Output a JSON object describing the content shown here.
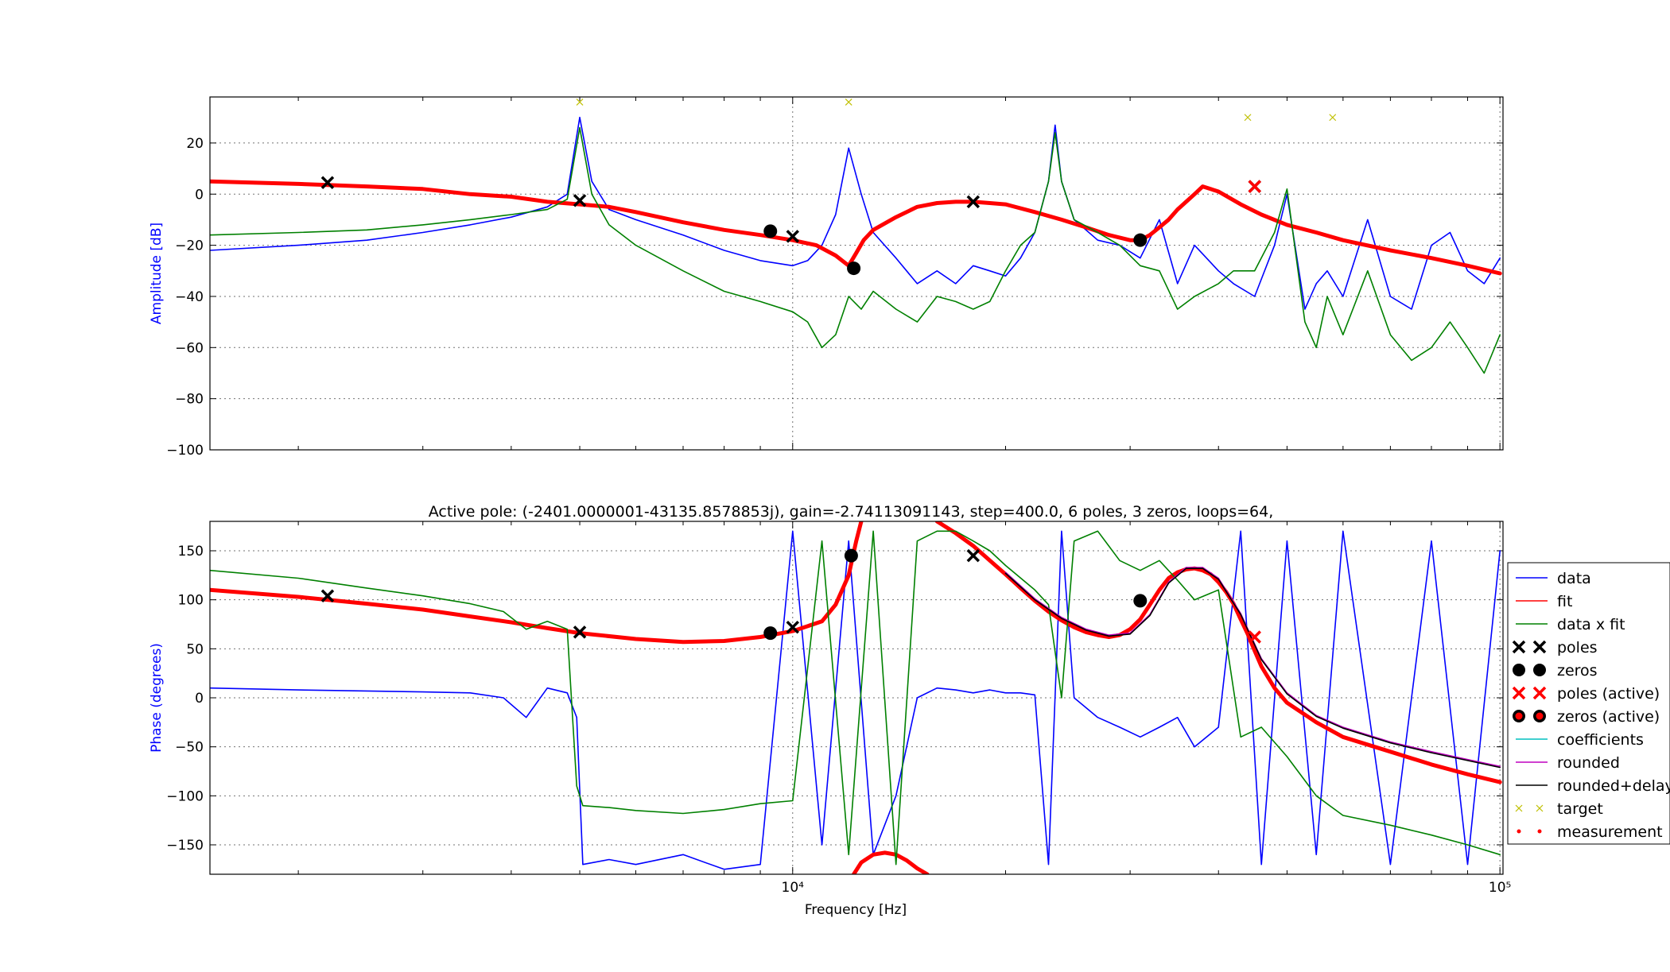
{
  "chart_data": [
    {
      "type": "line",
      "panel": "amplitude",
      "xscale": "log",
      "xlim": [
        1500,
        101000
      ],
      "ylim": [
        -100,
        38
      ],
      "ylabel": "Amplitude [dB]",
      "yticks": [
        20,
        0,
        -20,
        -40,
        -60,
        -80,
        -100
      ],
      "grid": true,
      "series": [
        {
          "name": "data",
          "color": "#0000ff",
          "x": [
            1500,
            2000,
            2500,
            3000,
            3500,
            4000,
            4500,
            4800,
            5000,
            5200,
            5500,
            6000,
            7000,
            8000,
            9000,
            10000,
            10500,
            11000,
            11500,
            12000,
            12500,
            13000,
            14000,
            15000,
            16000,
            17000,
            18000,
            19000,
            20000,
            21000,
            22000,
            23000,
            23500,
            24000,
            25000,
            27000,
            29000,
            31000,
            33000,
            35000,
            37000,
            40000,
            42000,
            45000,
            48000,
            50000,
            53000,
            55000,
            57000,
            60000,
            65000,
            70000,
            75000,
            80000,
            85000,
            90000,
            95000,
            100000
          ],
          "y": [
            -22,
            -20,
            -18,
            -15,
            -12,
            -9,
            -5,
            0,
            30,
            5,
            -6,
            -10,
            -16,
            -22,
            -26,
            -28,
            -26,
            -20,
            -8,
            18,
            0,
            -15,
            -25,
            -35,
            -30,
            -35,
            -28,
            -30,
            -32,
            -25,
            -15,
            5,
            27,
            5,
            -10,
            -18,
            -20,
            -25,
            -10,
            -35,
            -20,
            -30,
            -35,
            -40,
            -20,
            0,
            -45,
            -35,
            -30,
            -40,
            -10,
            -40,
            -45,
            -20,
            -15,
            -30,
            -35,
            -25
          ]
        },
        {
          "name": "fit",
          "color": "#ff0000",
          "x": [
            1500,
            2000,
            2500,
            3000,
            3500,
            4000,
            4500,
            5000,
            5500,
            6000,
            7000,
            8000,
            9000,
            10000,
            10800,
            11500,
            12000,
            12300,
            12600,
            13000,
            14000,
            15000,
            16000,
            17000,
            18000,
            19000,
            20000,
            22000,
            24000,
            26000,
            28000,
            30000,
            31000,
            32000,
            33000,
            34000,
            35000,
            36000,
            37000,
            38000,
            40000,
            43000,
            46000,
            50000,
            55000,
            60000,
            70000,
            80000,
            90000,
            100000
          ],
          "y": [
            5,
            4,
            3,
            2,
            0,
            -1,
            -3,
            -4,
            -5,
            -7,
            -11,
            -14,
            -16,
            -18,
            -20,
            -24,
            -28,
            -23,
            -18,
            -14,
            -9,
            -5,
            -3.5,
            -3,
            -3,
            -3.5,
            -4,
            -7,
            -10,
            -13,
            -16,
            -18,
            -18,
            -16,
            -13,
            -10,
            -6,
            -3,
            0,
            3,
            1,
            -4,
            -8,
            -12,
            -15,
            -18,
            -22,
            -25,
            -28,
            -31
          ]
        },
        {
          "name": "data x fit",
          "color": "#008000",
          "x": [
            1500,
            2000,
            2500,
            3000,
            3500,
            4000,
            4500,
            4800,
            5000,
            5200,
            5500,
            6000,
            7000,
            8000,
            9000,
            10000,
            10500,
            11000,
            11500,
            12000,
            12500,
            13000,
            14000,
            15000,
            16000,
            17000,
            18000,
            19000,
            20000,
            21000,
            22000,
            23000,
            23500,
            24000,
            25000,
            27000,
            29000,
            31000,
            33000,
            35000,
            37000,
            40000,
            42000,
            45000,
            48000,
            50000,
            53000,
            55000,
            57000,
            60000,
            65000,
            70000,
            75000,
            80000,
            85000,
            90000,
            95000,
            100000
          ],
          "y": [
            -16,
            -15,
            -14,
            -12,
            -10,
            -8,
            -6,
            -2,
            26,
            0,
            -12,
            -20,
            -30,
            -38,
            -42,
            -46,
            -50,
            -60,
            -55,
            -40,
            -45,
            -38,
            -45,
            -50,
            -40,
            -42,
            -45,
            -42,
            -30,
            -20,
            -15,
            5,
            24,
            5,
            -10,
            -15,
            -20,
            -28,
            -30,
            -45,
            -40,
            -35,
            -30,
            -30,
            -15,
            2,
            -50,
            -60,
            -40,
            -55,
            -30,
            -55,
            -65,
            -60,
            -50,
            -60,
            -70,
            -55
          ]
        }
      ],
      "markers": {
        "poles": [
          [
            2200,
            4.5
          ],
          [
            5000,
            -2.5
          ],
          [
            10000,
            -16.5
          ],
          [
            18000,
            -3
          ],
          [
            45000,
            3
          ]
        ],
        "zeros": [
          [
            9300,
            -14.5
          ],
          [
            12200,
            -29
          ],
          [
            31000,
            -18
          ]
        ],
        "poles_active": [
          [
            45000,
            3
          ]
        ],
        "target": [
          [
            5000,
            36
          ],
          [
            12000,
            36
          ],
          [
            44000,
            30
          ],
          [
            58000,
            30
          ]
        ]
      }
    },
    {
      "type": "line",
      "panel": "phase",
      "title": "Active pole: (-2401.0000001-43135.8578853j), gain=-2.74113091143, step=400.0, 6 poles, 3 zeros, loops=64,",
      "xscale": "log",
      "xlim": [
        1500,
        101000
      ],
      "ylim": [
        -180,
        180
      ],
      "ylabel": "Phase (degrees)",
      "xlabel": "Frequency [Hz]",
      "yticks": [
        150,
        100,
        50,
        0,
        -50,
        -100,
        -150
      ],
      "xticks": [
        {
          "value": 10000,
          "label": "10⁴"
        },
        {
          "value": 100000,
          "label": "10⁵"
        }
      ],
      "grid": true,
      "series": [
        {
          "name": "data",
          "color": "#0000ff",
          "x": [
            1500,
            2000,
            2500,
            3000,
            3500,
            3900,
            4200,
            4500,
            4800,
            4950,
            5050,
            5500,
            6000,
            7000,
            8000,
            9000,
            10000,
            11000,
            12000,
            13000,
            14000,
            15000,
            16000,
            17000,
            18000,
            19000,
            20000,
            21000,
            22000,
            23000,
            24000,
            25000,
            27000,
            29000,
            31000,
            33000,
            35000,
            37000,
            40000,
            43000,
            46000,
            50000,
            55000,
            60000,
            70000,
            80000,
            90000,
            100000
          ],
          "y": [
            10,
            8,
            7,
            6,
            5,
            0,
            -20,
            10,
            5,
            -20,
            -170,
            -165,
            -170,
            -160,
            -175,
            -170,
            170,
            -150,
            160,
            -160,
            -100,
            0,
            10,
            8,
            5,
            8,
            5,
            5,
            3,
            -170,
            170,
            0,
            -20,
            -30,
            -40,
            -30,
            -20,
            -50,
            -30,
            170,
            -170,
            160,
            -160,
            170,
            -170,
            160,
            -170,
            150
          ]
        },
        {
          "name": "fit",
          "color": "#ff0000",
          "x": [
            1500,
            2000,
            2500,
            3000,
            3500,
            4000,
            4500,
            5000,
            6000,
            7000,
            8000,
            9000,
            10000,
            11000,
            11500,
            12000,
            12300,
            12500
          ],
          "y": [
            110,
            103,
            96,
            90,
            83,
            77,
            71,
            66,
            60,
            57,
            58,
            62,
            68,
            78,
            95,
            125,
            160,
            180
          ]
        },
        {
          "name": "fit-b",
          "color": "#ff0000",
          "x": [
            16000,
            17000,
            18000,
            19000,
            20000,
            21000,
            22000,
            23000,
            24000,
            25000,
            26000,
            27000,
            28000,
            29000,
            30000,
            31000,
            32000,
            33000,
            34000,
            35000,
            36000,
            37000,
            38000,
            39000,
            40000,
            41000,
            42000,
            43000,
            44000,
            45000,
            46000,
            48000,
            50000,
            55000,
            60000,
            70000,
            80000,
            90000,
            100000
          ],
          "y": [
            180,
            168,
            155,
            140,
            126,
            112,
            99,
            88,
            79,
            72,
            67,
            64,
            62,
            64,
            70,
            80,
            95,
            110,
            122,
            128,
            131,
            132,
            130,
            126,
            118,
            108,
            96,
            80,
            65,
            48,
            32,
            10,
            -5,
            -25,
            -40,
            -55,
            -68,
            -78,
            -86
          ]
        },
        {
          "name": "fit-c",
          "color": "#ff0000",
          "x": [
            12200,
            12500,
            13000,
            13500,
            14000,
            14500,
            15000,
            15500
          ],
          "y": [
            -180,
            -168,
            -160,
            -158,
            -160,
            -166,
            -174,
            -180
          ]
        },
        {
          "name": "data x fit",
          "color": "#008000",
          "x": [
            1500,
            2000,
            2500,
            3000,
            3500,
            3900,
            4200,
            4500,
            4800,
            4950,
            5050,
            5500,
            6000,
            7000,
            8000,
            9000,
            10000,
            11000,
            12000,
            13000,
            14000,
            15000,
            16000,
            17000,
            18000,
            19000,
            20000,
            22000,
            23000,
            24000,
            25000,
            27000,
            29000,
            31000,
            33000,
            35000,
            37000,
            40000,
            43000,
            46000,
            50000,
            55000,
            60000,
            70000,
            80000,
            90000,
            100000
          ],
          "y": [
            130,
            122,
            112,
            104,
            96,
            88,
            70,
            78,
            70,
            -90,
            -110,
            -112,
            -115,
            -118,
            -114,
            -108,
            -105,
            160,
            -160,
            170,
            -170,
            160,
            170,
            170,
            160,
            150,
            135,
            110,
            95,
            0,
            160,
            170,
            140,
            130,
            140,
            120,
            100,
            110,
            -40,
            -30,
            -60,
            -100,
            -120,
            -130,
            -140,
            -150,
            -160
          ]
        },
        {
          "name": "rounded",
          "color": "#bf00bf",
          "x": [
            20000,
            22000,
            24000,
            26000,
            28000,
            30000,
            32000,
            34000,
            36000,
            38000,
            40000,
            43000,
            46000,
            50000,
            55000,
            60000,
            70000,
            80000,
            90000,
            100000
          ],
          "y": [
            128,
            101,
            82,
            70,
            64,
            66,
            85,
            118,
            133,
            133,
            122,
            86,
            40,
            5,
            -18,
            -30,
            -45,
            -55,
            -63,
            -70
          ]
        },
        {
          "name": "rounded+delay",
          "color": "#000000",
          "x": [
            20000,
            22000,
            24000,
            26000,
            28000,
            30000,
            32000,
            34000,
            36000,
            38000,
            40000,
            43000,
            46000,
            50000,
            55000,
            60000,
            70000,
            80000,
            90000,
            100000
          ],
          "y": [
            127,
            100,
            81,
            69,
            63,
            65,
            84,
            117,
            132,
            132,
            121,
            85,
            39,
            4,
            -19,
            -31,
            -46,
            -56,
            -64,
            -71
          ]
        }
      ],
      "markers": {
        "poles": [
          [
            2200,
            104
          ],
          [
            5000,
            67
          ],
          [
            10000,
            72
          ],
          [
            18000,
            145
          ]
        ],
        "zeros": [
          [
            9300,
            66
          ],
          [
            12100,
            145
          ],
          [
            31000,
            99
          ]
        ],
        "poles_active": [
          [
            45000,
            62
          ]
        ]
      }
    }
  ],
  "legend": {
    "placement": "right",
    "items": [
      {
        "label": "data",
        "style": "line",
        "color": "#0000ff"
      },
      {
        "label": "fit",
        "style": "line",
        "color": "#ff0000"
      },
      {
        "label": "data x fit",
        "style": "line",
        "color": "#008000"
      },
      {
        "label": "poles",
        "style": "x",
        "color": "#000000"
      },
      {
        "label": "zeros",
        "style": "o",
        "color": "#000000"
      },
      {
        "label": "poles (active)",
        "style": "x",
        "color": "#ff0000"
      },
      {
        "label": "zeros (active)",
        "style": "o-active",
        "color": "#ff0000"
      },
      {
        "label": "coefficients",
        "style": "line",
        "color": "#00bfbf"
      },
      {
        "label": "rounded",
        "style": "line",
        "color": "#bf00bf"
      },
      {
        "label": "rounded+delay",
        "style": "line",
        "color": "#000000"
      },
      {
        "label": "target",
        "style": "smallx",
        "color": "#bfbf00"
      },
      {
        "label": "measurement",
        "style": "dot",
        "color": "#ff0000"
      }
    ]
  }
}
